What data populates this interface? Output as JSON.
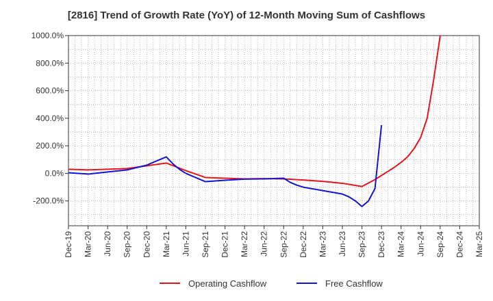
{
  "chart_data": {
    "type": "line",
    "title": "[2816]  Trend of Growth Rate (YoY) of 12-Month Moving Sum of Cashflows",
    "xlabel": "",
    "ylabel": "",
    "ylim": [
      -380,
      1000
    ],
    "yticks": [
      1000,
      800,
      600,
      400,
      200,
      0,
      -200
    ],
    "ytick_labels": [
      "1000.0%",
      "800.0%",
      "600.0%",
      "400.0%",
      "200.0%",
      "0.0%",
      "-200.0%"
    ],
    "x_tick_labels": [
      "Dec-19",
      "Mar-20",
      "Jun-20",
      "Sep-20",
      "Dec-20",
      "Mar-21",
      "Jun-21",
      "Sep-21",
      "Dec-21",
      "Mar-22",
      "Jun-22",
      "Sep-22",
      "Dec-22",
      "Mar-23",
      "Jun-23",
      "Sep-23",
      "Dec-23",
      "Mar-24",
      "Jun-24",
      "Sep-24",
      "Dec-24",
      "Mar-25"
    ],
    "grid": true,
    "legend_position": "bottom-center",
    "series": [
      {
        "name": "Operating Cashflow",
        "color": "#e8141b",
        "points": [
          [
            "Dec-19",
            30
          ],
          [
            "Mar-20",
            25
          ],
          [
            "Jun-20",
            30
          ],
          [
            "Sep-20",
            35
          ],
          [
            "Dec-20",
            55
          ],
          [
            "Mar-21",
            75
          ],
          [
            "Jun-21",
            20
          ],
          [
            "Sep-21",
            -30
          ],
          [
            "Dec-21",
            -35
          ],
          [
            "Mar-22",
            -40
          ],
          [
            "Jun-22",
            -38
          ],
          [
            "Sep-22",
            -40
          ],
          [
            "Dec-22",
            -48
          ],
          [
            "Mar-23",
            -58
          ],
          [
            "Jun-23",
            -72
          ],
          [
            "Sep-23",
            -95
          ],
          [
            "Oct-23",
            -70
          ],
          [
            "Nov-23",
            -45
          ],
          [
            "Dec-23",
            -15
          ],
          [
            "Jan-24",
            15
          ],
          [
            "Feb-24",
            45
          ],
          [
            "Mar-24",
            80
          ],
          [
            "Apr-24",
            120
          ],
          [
            "May-24",
            180
          ],
          [
            "Jun-24",
            260
          ],
          [
            "Jul-24",
            400
          ],
          [
            "Aug-24",
            680
          ],
          [
            "Sep-24",
            1000
          ]
        ]
      },
      {
        "name": "Free Cashflow",
        "color": "#1414d2",
        "points": [
          [
            "Dec-19",
            5
          ],
          [
            "Mar-20",
            -5
          ],
          [
            "Jun-20",
            10
          ],
          [
            "Sep-20",
            25
          ],
          [
            "Dec-20",
            60
          ],
          [
            "Jan-21",
            80
          ],
          [
            "Feb-21",
            100
          ],
          [
            "Mar-21",
            120
          ],
          [
            "Apr-21",
            70
          ],
          [
            "May-21",
            30
          ],
          [
            "Jun-21",
            0
          ],
          [
            "Sep-21",
            -60
          ],
          [
            "Dec-21",
            -50
          ],
          [
            "Mar-22",
            -42
          ],
          [
            "Jun-22",
            -40
          ],
          [
            "Sep-22",
            -35
          ],
          [
            "Oct-22",
            -65
          ],
          [
            "Nov-22",
            -85
          ],
          [
            "Dec-22",
            -100
          ],
          [
            "Mar-23",
            -125
          ],
          [
            "Jun-23",
            -150
          ],
          [
            "Jul-23",
            -170
          ],
          [
            "Aug-23",
            -200
          ],
          [
            "Sep-23",
            -240
          ],
          [
            "Oct-23",
            -200
          ],
          [
            "Nov-23",
            -110
          ],
          [
            "Dec-23",
            350
          ]
        ]
      }
    ]
  }
}
